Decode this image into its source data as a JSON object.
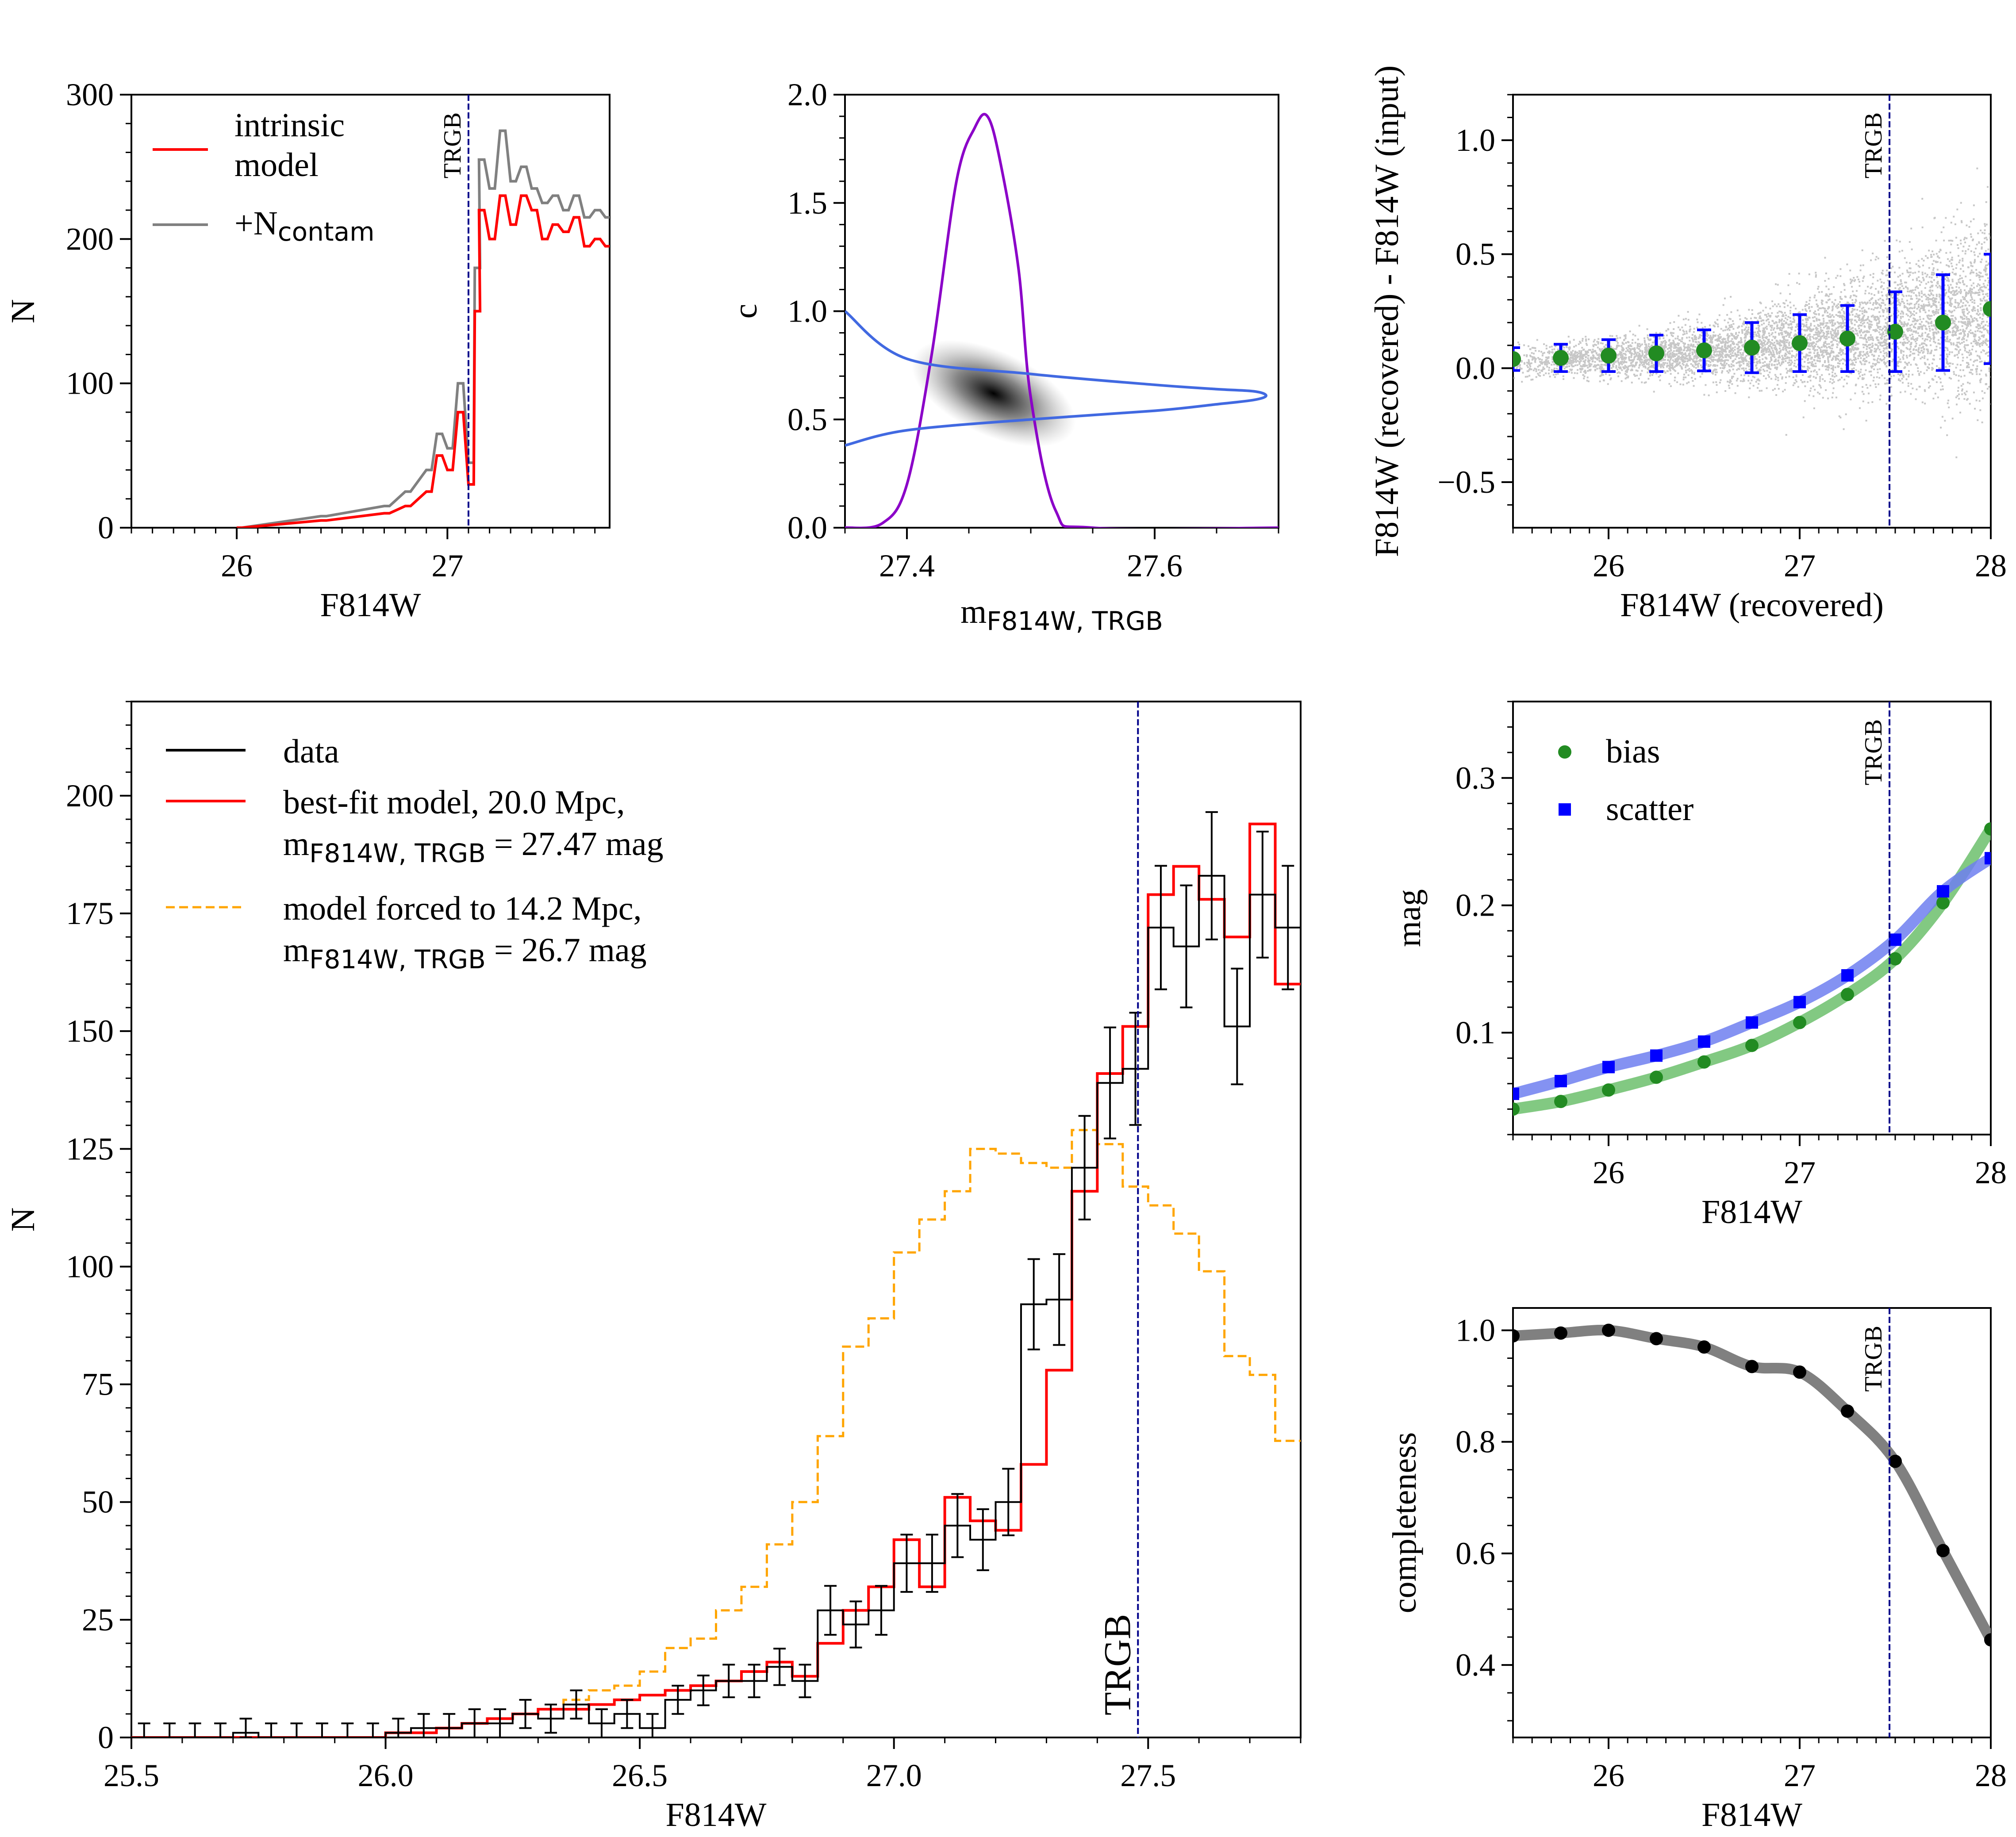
{
  "chart_data": [
    {
      "id": "p1",
      "type": "line",
      "xlabel": "F814W",
      "ylabel": "N",
      "xlim": [
        25.5,
        27.77
      ],
      "ylim": [
        0,
        300
      ],
      "xticks": [
        26,
        27
      ],
      "yticks": [
        0,
        100,
        200,
        300
      ],
      "vline": {
        "x": 27.1,
        "label": "TRGB"
      },
      "legend": {
        "position": "top-left",
        "entries": [
          {
            "name": "intrinsic\n model",
            "color": "#ff0000"
          },
          {
            "name": "+N",
            "sub": "contam",
            "color": "#808080"
          }
        ]
      },
      "series": [
        {
          "name": "intrinsic model",
          "color": "#ff0000",
          "step": true,
          "x": [
            26.0,
            26.4,
            26.7,
            26.8,
            26.9,
            26.95,
            27.0,
            27.05,
            27.1,
            27.13,
            27.15,
            27.2,
            27.25,
            27.3,
            27.35,
            27.4,
            27.45,
            27.5,
            27.55,
            27.6,
            27.65,
            27.7,
            27.75
          ],
          "values": [
            0,
            5,
            10,
            15,
            25,
            50,
            40,
            80,
            30,
            150,
            220,
            200,
            230,
            210,
            230,
            220,
            200,
            210,
            205,
            215,
            195,
            200,
            195
          ]
        },
        {
          "name": "+N contam",
          "color": "#808080",
          "step": true,
          "x": [
            26.0,
            26.4,
            26.7,
            26.8,
            26.9,
            26.95,
            27.0,
            27.05,
            27.1,
            27.13,
            27.15,
            27.2,
            27.25,
            27.3,
            27.35,
            27.4,
            27.45,
            27.5,
            27.55,
            27.6,
            27.65,
            27.7,
            27.75
          ],
          "values": [
            0,
            8,
            15,
            25,
            40,
            65,
            55,
            100,
            45,
            180,
            255,
            235,
            275,
            240,
            250,
            235,
            225,
            230,
            220,
            230,
            215,
            220,
            215
          ]
        }
      ]
    },
    {
      "id": "p2",
      "type": "line",
      "xlabel": "m",
      "xlabel_sub": "F814W, TRGB",
      "ylabel": "c",
      "xlim": [
        27.35,
        27.7
      ],
      "ylim": [
        0,
        2.0
      ],
      "xticks": [
        27.4,
        27.6
      ],
      "ytick_labels": [
        "0.0",
        "0.5",
        "1.0",
        "1.5",
        "2.0"
      ],
      "series": [
        {
          "name": "m marginal",
          "color": "#8b00c8",
          "x": [
            27.35,
            27.38,
            27.4,
            27.42,
            27.44,
            27.455,
            27.465,
            27.475,
            27.49,
            27.5,
            27.52,
            27.55,
            27.7
          ],
          "values": [
            0,
            0.02,
            0.2,
            0.8,
            1.6,
            1.85,
            1.9,
            1.7,
            1.2,
            0.6,
            0.08,
            0,
            0
          ]
        },
        {
          "name": "c marginal",
          "color": "#4169e1",
          "x": [
            27.35,
            27.4,
            27.5,
            27.6,
            27.65,
            27.68,
            27.69,
            27.68,
            27.65,
            27.6,
            27.5,
            27.4,
            27.35
          ],
          "values": [
            0.38,
            0.45,
            0.5,
            0.54,
            0.57,
            0.59,
            0.61,
            0.63,
            0.64,
            0.66,
            0.71,
            0.78,
            1.0
          ]
        }
      ],
      "density_blob": {
        "center": [
          27.47,
          0.62
        ]
      }
    },
    {
      "id": "p3",
      "type": "scatter",
      "xlabel": "F814W (recovered)",
      "ylabel": "F814W (recovered) - F814W (input)",
      "xlim": [
        25.5,
        28.0
      ],
      "ylim": [
        -0.7,
        1.2
      ],
      "xticks": [
        26,
        27,
        28
      ],
      "ytick_labels": [
        "−0.5",
        "0.0",
        "0.5",
        "1.0"
      ],
      "vline": {
        "x": 27.47,
        "label": "TRGB"
      },
      "series": [
        {
          "name": "binned median",
          "color": "#228b22",
          "x": [
            25.5,
            25.75,
            26.0,
            26.25,
            26.5,
            26.75,
            27.0,
            27.25,
            27.5,
            27.75,
            28.0
          ],
          "values": [
            0.04,
            0.045,
            0.055,
            0.065,
            0.078,
            0.09,
            0.11,
            0.13,
            0.16,
            0.2,
            0.26
          ],
          "errors": [
            0.05,
            0.06,
            0.07,
            0.08,
            0.09,
            0.11,
            0.125,
            0.145,
            0.175,
            0.21,
            0.24
          ],
          "error_color": "#0000ff"
        }
      ]
    },
    {
      "id": "p4",
      "type": "line",
      "xlabel": "F814W",
      "ylabel": "N",
      "xlim": [
        25.5,
        27.8
      ],
      "ylim": [
        0,
        220
      ],
      "xtick_labels": [
        "25.5",
        "26.0",
        "26.5",
        "27.0",
        "27.5"
      ],
      "yticks": [
        0,
        25,
        50,
        75,
        100,
        125,
        150,
        175,
        200
      ],
      "vline": {
        "x": 27.48,
        "label": "TRGB"
      },
      "legend": {
        "position": "top-left",
        "entries": [
          {
            "line1": "data",
            "color": "#000000",
            "dash": false
          },
          {
            "line1": "best-fit model, 20.0 Mpc,",
            "line2_pre": " m",
            "line2_sub": "F814W, TRGB",
            "line2_post": " = 27.47 mag",
            "color": "#ff0000",
            "dash": false
          },
          {
            "line1": "model forced to 14.2 Mpc,",
            "line2_pre": " m",
            "line2_sub": "F814W, TRGB",
            "line2_post": " = 26.7 mag",
            "color": "#ffa500",
            "dash": true
          }
        ]
      },
      "series": [
        {
          "name": "data",
          "color": "#000000",
          "step": true,
          "x": [
            25.5,
            25.55,
            25.6,
            25.65,
            25.7,
            25.75,
            25.8,
            25.85,
            25.9,
            25.95,
            26.0,
            26.05,
            26.1,
            26.15,
            26.2,
            26.25,
            26.3,
            26.35,
            26.4,
            26.45,
            26.5,
            26.55,
            26.6,
            26.65,
            26.7,
            26.75,
            26.8,
            26.85,
            26.9,
            26.95,
            27.0,
            27.05,
            27.1,
            27.15,
            27.2,
            27.25,
            27.3,
            27.35,
            27.4,
            27.45,
            27.5,
            27.55,
            27.6,
            27.65,
            27.7,
            27.75
          ],
          "values": [
            0,
            0,
            0,
            0,
            1,
            0,
            0,
            0,
            0,
            0,
            1,
            2,
            2,
            3,
            3,
            5,
            4,
            7,
            3,
            5,
            2,
            8,
            10,
            12,
            12,
            15,
            12,
            27,
            24,
            27,
            37,
            37,
            45,
            42,
            50,
            92,
            93,
            121,
            139,
            142,
            172,
            168,
            183,
            151,
            179,
            172
          ]
        },
        {
          "name": "best-fit model",
          "color": "#ff0000",
          "step": true,
          "x": [
            25.5,
            25.55,
            25.6,
            25.65,
            25.7,
            25.75,
            25.8,
            25.85,
            25.9,
            25.95,
            26.0,
            26.05,
            26.1,
            26.15,
            26.2,
            26.25,
            26.3,
            26.35,
            26.4,
            26.45,
            26.5,
            26.55,
            26.6,
            26.65,
            26.7,
            26.75,
            26.8,
            26.85,
            26.9,
            26.95,
            27.0,
            27.05,
            27.1,
            27.15,
            27.2,
            27.25,
            27.3,
            27.35,
            27.4,
            27.45,
            27.5,
            27.55,
            27.6,
            27.65,
            27.7,
            27.75
          ],
          "values": [
            0,
            0,
            0,
            0,
            0,
            0,
            0,
            0,
            0,
            0,
            1,
            1,
            2,
            3,
            4,
            5,
            6,
            6,
            7,
            8,
            9,
            10,
            11,
            12,
            14,
            16,
            13,
            20,
            27,
            32,
            42,
            32,
            51,
            46,
            44,
            58,
            78,
            116,
            141,
            151,
            179,
            185,
            178,
            170,
            194,
            160
          ]
        },
        {
          "name": "model forced",
          "color": "#ffa500",
          "step": true,
          "dash": true,
          "x": [
            25.5,
            25.55,
            25.6,
            25.65,
            25.7,
            25.75,
            25.8,
            25.85,
            25.9,
            25.95,
            26.0,
            26.05,
            26.1,
            26.15,
            26.2,
            26.25,
            26.3,
            26.35,
            26.4,
            26.45,
            26.5,
            26.55,
            26.6,
            26.65,
            26.7,
            26.75,
            26.8,
            26.85,
            26.9,
            26.95,
            27.0,
            27.05,
            27.1,
            27.15,
            27.2,
            27.25,
            27.3,
            27.35,
            27.4,
            27.45,
            27.5,
            27.55,
            27.6,
            27.65,
            27.7,
            27.75
          ],
          "values": [
            0,
            0,
            0,
            0,
            0,
            0,
            0,
            0,
            0,
            0,
            1,
            1,
            2,
            3,
            4,
            5,
            6,
            8,
            10,
            11,
            14,
            19,
            21,
            27,
            32,
            41,
            50,
            64,
            83,
            89,
            103,
            110,
            116,
            125,
            124,
            122,
            121,
            129,
            126,
            117,
            113,
            107,
            99,
            81,
            77,
            63
          ]
        }
      ]
    },
    {
      "id": "p5",
      "type": "scatter",
      "xlabel": "F814W",
      "ylabel": "mag",
      "xlim": [
        25.5,
        28.0
      ],
      "ylim": [
        0.02,
        0.36
      ],
      "xticks": [
        26,
        27,
        28
      ],
      "ytick_labels": [
        "0.1",
        "0.2",
        "0.3"
      ],
      "vline": {
        "x": 27.47,
        "label": "TRGB"
      },
      "legend": {
        "position": "top-left",
        "entries": [
          {
            "name": "bias",
            "color": "#228b22",
            "marker": "circle"
          },
          {
            "name": "scatter",
            "color": "#0000ff",
            "marker": "square"
          }
        ]
      },
      "series": [
        {
          "name": "bias",
          "color": "#228b22",
          "band_color": "#6cbf6c",
          "marker": "circle",
          "x": [
            25.5,
            25.75,
            26.0,
            26.25,
            26.5,
            26.75,
            27.0,
            27.25,
            27.5,
            27.75,
            28.0
          ],
          "values": [
            0.04,
            0.046,
            0.055,
            0.065,
            0.077,
            0.09,
            0.108,
            0.13,
            0.158,
            0.202,
            0.26
          ]
        },
        {
          "name": "scatter",
          "color": "#0000ff",
          "band_color": "#6f7ff0",
          "marker": "square",
          "x": [
            25.5,
            25.75,
            26.0,
            26.25,
            26.5,
            26.75,
            27.0,
            27.25,
            27.5,
            27.75,
            28.0
          ],
          "values": [
            0.052,
            0.062,
            0.073,
            0.082,
            0.093,
            0.108,
            0.124,
            0.145,
            0.173,
            0.211,
            0.237
          ]
        }
      ]
    },
    {
      "id": "p6",
      "type": "scatter",
      "xlabel": "F814W",
      "ylabel": "completeness",
      "xlim": [
        25.5,
        28.0
      ],
      "ylim": [
        0.27,
        1.04
      ],
      "xticks": [
        26,
        27,
        28
      ],
      "ytick_labels": [
        "0.4",
        "0.6",
        "0.8",
        "1.0"
      ],
      "vline": {
        "x": 27.47,
        "label": "TRGB"
      },
      "series": [
        {
          "name": "completeness",
          "color": "#000000",
          "band_color": "#808080",
          "x": [
            25.5,
            25.75,
            26.0,
            26.25,
            26.5,
            26.75,
            27.0,
            27.25,
            27.5,
            27.75,
            28.0
          ],
          "values": [
            0.99,
            0.995,
            1.0,
            0.985,
            0.97,
            0.935,
            0.925,
            0.855,
            0.765,
            0.605,
            0.445
          ]
        }
      ]
    }
  ]
}
